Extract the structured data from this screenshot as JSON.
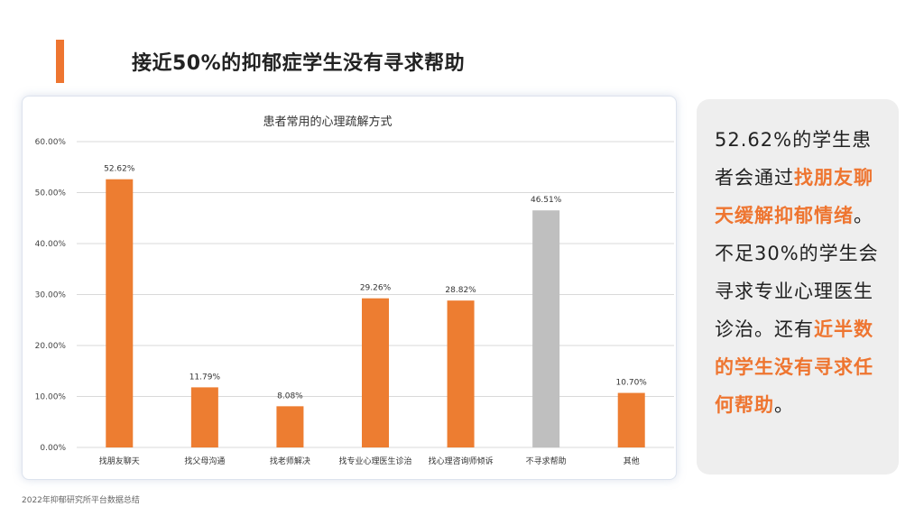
{
  "header": {
    "title": "接近50%的抑郁症学生没有寻求帮助"
  },
  "colors": {
    "accent": "#ee7530",
    "bar": "#ed7d31",
    "bar_muted": "#bfbfbf",
    "grid": "#d9d9d9"
  },
  "chart_data": {
    "type": "bar",
    "title": "患者常用的心理疏解方式",
    "categories": [
      "找朋友聊天",
      "找父母沟通",
      "找老师解决",
      "找专业心理医生诊治",
      "找心理咨询师倾诉",
      "不寻求帮助",
      "其他"
    ],
    "values": [
      52.62,
      11.79,
      8.08,
      29.26,
      28.82,
      46.51,
      10.7
    ],
    "data_labels": [
      "52.62%",
      "11.79%",
      "8.08%",
      "29.26%",
      "28.82%",
      "46.51%",
      "10.70%"
    ],
    "highlight_index": 5,
    "ylim": [
      0,
      60
    ],
    "yticks": [
      0,
      10,
      20,
      30,
      40,
      50,
      60
    ],
    "ytick_labels": [
      "0.00%",
      "10.00%",
      "20.00%",
      "30.00%",
      "40.00%",
      "50.00%",
      "60.00%"
    ],
    "grid": true
  },
  "side": {
    "segments": [
      {
        "text": "52.62%的学生患者会通过",
        "highlight": false
      },
      {
        "text": "找朋友聊天缓解抑郁情绪",
        "highlight": true
      },
      {
        "text": "。不足30%的学生会寻求专业心理医生诊治。还有",
        "highlight": false
      },
      {
        "text": "近半数的学生没有寻求任何帮助",
        "highlight": true
      },
      {
        "text": "。",
        "highlight": false
      }
    ]
  },
  "footer": {
    "source": "2022年抑郁研究所平台数据总结"
  }
}
